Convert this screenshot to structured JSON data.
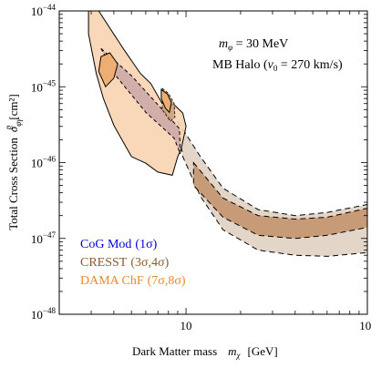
{
  "chart_data": {
    "type": "area",
    "title": "",
    "xlabel": "Dark Matter mass",
    "xsymbol": "m",
    "xsymbol_sub": "χ",
    "xunit": "[GeV]",
    "ylabel": "Total Cross Section",
    "ysymbol": "σ",
    "ysymbol_sub": "φγ",
    "ysymbol_sup": "p",
    "yunit": "[cm²]",
    "xscale": "log",
    "yscale": "log",
    "xlim": [
      2,
      100
    ],
    "ylim": [
      1e-48,
      1e-44
    ],
    "x_ticks": [
      {
        "value": 10,
        "label": "10"
      },
      {
        "value": 100,
        "label": "10",
        "exp": "2"
      }
    ],
    "y_ticks": [
      {
        "value": 1e-44,
        "label": "10",
        "exp": "−44"
      },
      {
        "value": 1e-45,
        "label": "10",
        "exp": "−45"
      },
      {
        "value": 1e-46,
        "label": "10",
        "exp": "−46"
      },
      {
        "value": 1e-47,
        "label": "10",
        "exp": "−47"
      },
      {
        "value": 1e-48,
        "label": "10",
        "exp": "−48"
      }
    ],
    "annotations": [
      {
        "text": "m",
        "sub": "φ",
        "rest": " = 30 MeV"
      },
      {
        "text": "MB Halo (",
        "italic": "v",
        "sub": "0",
        "rest": " = 270 km/s)"
      }
    ],
    "legend_position": "bottom-left",
    "colors": {
      "cog": "#0000dd",
      "cresst": "#8b5a2b",
      "dama": "#e8892f",
      "dama_fill_outer": "#f7d5b3",
      "dama_fill_inner": "#eeae72",
      "cresst_band": "#e3d5c8",
      "cresst_core": "#c79b77",
      "cog_fill": "#c6a0a6"
    },
    "series": [
      {
        "name": "CoG Mod",
        "sigma": "(1σ)",
        "regions": [
          {
            "level": "1σ",
            "x": [
              3.4,
              5.0,
              7.0,
              9.2,
              9.3,
              8.6,
              6.0,
              4.1
            ],
            "y": [
              3.2e-45,
              1.4e-45,
              5.8e-46,
              2.8e-46,
              1.3e-46,
              2.1e-46,
              4.6e-46,
              1.4e-45
            ]
          }
        ]
      },
      {
        "name": "CRESST",
        "sigma": "(3σ,4σ)",
        "regions": [
          {
            "level": "4σ",
            "x": [
              9.0,
              12,
              16,
              25,
              40,
              60,
              100,
              100,
              60,
              40,
              25,
              16,
              12,
              9.6
            ],
            "y": [
              3.5e-46,
              1.2e-46,
              4.6e-47,
              2.4e-47,
              2e-47,
              2.2e-47,
              2.8e-47,
              6.5e-48,
              5.8e-48,
              6e-48,
              7e-48,
              1.3e-47,
              3.6e-47,
              1.2e-46
            ]
          },
          {
            "level": "3σ",
            "x": [
              11,
              16,
              25,
              40,
              60,
              100,
              100,
              60,
              40,
              25,
              16,
              11
            ],
            "y": [
              1e-46,
              3.4e-47,
              2e-47,
              1.8e-47,
              1.9e-47,
              2.5e-47,
              1.4e-47,
              1.1e-47,
              1e-47,
              1.1e-47,
              1.9e-47,
              5e-47
            ]
          },
          {
            "level": "small-island",
            "x": [
              7.4,
              8.0,
              8.6,
              8.7,
              8.2,
              7.4
            ],
            "y": [
              9.5e-46,
              8.2e-46,
              6e-46,
              4e-46,
              3.5e-46,
              5e-46
            ]
          }
        ]
      },
      {
        "name": "DAMA ChF",
        "sigma": "(7σ,8σ)",
        "regions": [
          {
            "level": "8σ",
            "x": [
              2.9,
              3.3,
              4.5,
              5.6,
              6.4,
              7.4,
              8.6,
              9.6,
              10.0,
              9.4,
              9.0,
              8.4,
              7.0,
              6.0,
              5.0,
              4.0,
              3.5,
              3.2,
              2.9
            ],
            "y": [
              1e-44,
              1e-44,
              3.2e-45,
              1.5e-45,
              1.1e-45,
              6e-46,
              5.8e-46,
              4.5e-46,
              3e-46,
              1.5e-46,
              1.2e-46,
              6.8e-47,
              7.5e-47,
              9.8e-47,
              1.2e-46,
              3.1e-46,
              7e-46,
              1.5e-45,
              5e-45
            ]
          },
          {
            "level": "7σ",
            "x": [
              3.4,
              3.8,
              4.2,
              4.0,
              3.6,
              3.3
            ],
            "y": [
              2.5e-45,
              2.8e-45,
              2e-45,
              1.3e-45,
              1e-45,
              1.6e-45
            ]
          },
          {
            "level": "7σ",
            "x": [
              7.3,
              7.9,
              8.3,
              8.1,
              7.7,
              7.3
            ],
            "y": [
              9.2e-46,
              8e-46,
              6.2e-46,
              4.6e-46,
              5.2e-46,
              7e-46
            ]
          }
        ]
      }
    ]
  }
}
